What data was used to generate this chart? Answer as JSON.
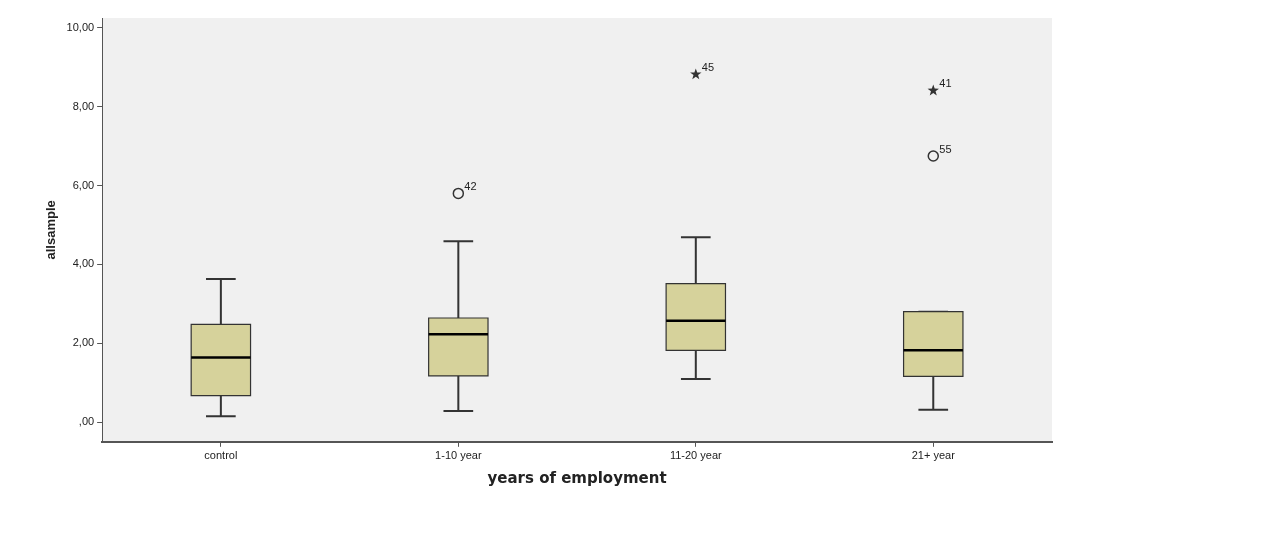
{
  "chart_data": {
    "type": "box",
    "xlabel": "years of employment",
    "ylabel": "allsample",
    "categories": [
      "control",
      "1-10 year",
      "11-20 year",
      "21+ year"
    ],
    "color": "#d6d29b",
    "boxes": [
      {
        "low": 0.15,
        "q1": 0.67,
        "median": 1.64,
        "q3": 2.48,
        "high": 3.63
      },
      {
        "low": 0.28,
        "q1": 1.17,
        "median": 2.23,
        "q3": 2.64,
        "high": 4.59
      },
      {
        "low": 1.09,
        "q1": 1.82,
        "median": 2.57,
        "q3": 3.51,
        "high": 4.69
      },
      {
        "low": 0.31,
        "q1": 1.16,
        "median": 1.82,
        "q3": 2.8,
        "high": 2.8
      }
    ],
    "series": [
      {
        "type": "scatter",
        "marker": "circle",
        "color": "#333333",
        "x": [
          "1-10 year",
          "21+ year"
        ],
        "values": [
          5.8,
          6.75
        ]
      },
      {
        "type": "scatter",
        "marker": "star",
        "color": "#333333",
        "x": [
          "11-20 year",
          "21+ year"
        ],
        "values": [
          8.82,
          8.41
        ]
      }
    ],
    "annotations": [
      {
        "text": "42",
        "x": "1-10 year",
        "y": 5.8
      },
      {
        "text": "45",
        "x": "11-20 year",
        "y": 8.82
      },
      {
        "text": "41",
        "x": "21+ year",
        "y": 8.41
      },
      {
        "text": "55",
        "x": "21+ year",
        "y": 6.75
      }
    ],
    "ylim": [
      -0.5,
      10.25
    ],
    "yticks": [
      {
        "value": 0,
        "label": ",00"
      },
      {
        "value": 2,
        "label": "2,00"
      },
      {
        "value": 4,
        "label": "4,00"
      },
      {
        "value": 6,
        "label": "6,00"
      },
      {
        "value": 8,
        "label": "8,00"
      },
      {
        "value": 10,
        "label": "10,00"
      }
    ],
    "grid": false,
    "legend": false
  }
}
